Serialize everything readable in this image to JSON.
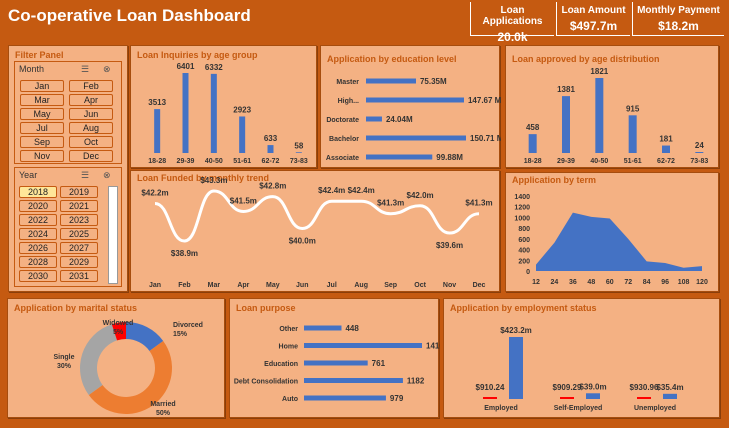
{
  "title": "Co-operative Loan Dashboard",
  "kpis": [
    {
      "label": "Loan Applications",
      "value": "20.0k"
    },
    {
      "label": "Loan Amount",
      "value": "$497.7m"
    },
    {
      "label": "Monthly Payment",
      "value": "$18.2m"
    }
  ],
  "filter": {
    "title": "Filter Panel",
    "month_label": "Month",
    "months": [
      "Jan",
      "Feb",
      "Mar",
      "Apr",
      "May",
      "Jun",
      "Jul",
      "Aug",
      "Sep",
      "Oct",
      "Nov",
      "Dec"
    ],
    "year_label": "Year",
    "years": [
      "2018",
      "2019",
      "2020",
      "2021",
      "2022",
      "2023",
      "2024",
      "2025",
      "2026",
      "2027",
      "2028",
      "2029",
      "2030",
      "2031"
    ],
    "selected_year": "2018"
  },
  "chart_data": [
    {
      "id": "age",
      "type": "bar",
      "title": "Loan Inquiries by age group",
      "categories": [
        "18-28",
        "29-39",
        "40-50",
        "51-61",
        "62-72",
        "73-83"
      ],
      "values": [
        3513,
        6401,
        6332,
        2923,
        633,
        58
      ],
      "color": "#4472c4"
    },
    {
      "id": "edu",
      "type": "bar",
      "orientation": "horizontal",
      "title": "Application by education level",
      "categories": [
        "Master",
        "High...",
        "Doctorate",
        "Bachelor",
        "Associate"
      ],
      "values": [
        75.35,
        147.67,
        24.04,
        150.71,
        99.88
      ],
      "labels": [
        "75.35M",
        "147.67 M",
        "24.04M",
        "150.71 M",
        "99.88M"
      ],
      "color": "#4472c4"
    },
    {
      "id": "approved",
      "type": "bar",
      "title": "Loan approved by age distribution",
      "categories": [
        "18-28",
        "29-39",
        "40-50",
        "51-61",
        "62-72",
        "73-83"
      ],
      "values": [
        458,
        1381,
        1821,
        915,
        181,
        24
      ],
      "color": "#4472c4"
    },
    {
      "id": "trend",
      "type": "line",
      "title": "Loan Funded by monthly trend",
      "categories": [
        "Jan",
        "Feb",
        "Mar",
        "Apr",
        "May",
        "Jun",
        "Jul",
        "Aug",
        "Sep",
        "Oct",
        "Nov",
        "Dec"
      ],
      "values": [
        42.2,
        38.9,
        43.3,
        41.5,
        42.8,
        40.0,
        42.4,
        42.4,
        41.3,
        42.0,
        39.6,
        41.3
      ],
      "labels": [
        "$42.2m",
        "$38.9m",
        "$43.3m",
        "$41.5m",
        "$42.8m",
        "$40.0m",
        "$42.4m",
        "$42.4m",
        "$41.3m",
        "$42.0m",
        "$39.6m",
        "$41.3m"
      ],
      "color": "#ffffff"
    },
    {
      "id": "term",
      "type": "area",
      "title": "Application by term",
      "categories": [
        "12",
        "24",
        "36",
        "48",
        "60",
        "72",
        "84",
        "96",
        "108",
        "120"
      ],
      "values": [
        120,
        530,
        1090,
        1010,
        980,
        600,
        180,
        150,
        60,
        90
      ],
      "ylim": [
        0,
        1400
      ],
      "yticks": [
        0,
        200,
        400,
        600,
        800,
        1000,
        1200,
        1400
      ],
      "color": "#4472c4"
    },
    {
      "id": "marital",
      "type": "pie",
      "title": "Application by marital status",
      "slices": [
        {
          "name": "Divorced",
          "value": 15,
          "label": "15%",
          "color": "#4472c4"
        },
        {
          "name": "Married",
          "value": 50,
          "label": "50%",
          "color": "#ed7d31"
        },
        {
          "name": "Single",
          "value": 30,
          "label": "30%",
          "color": "#a5a5a5"
        },
        {
          "name": "Widowed",
          "value": 5,
          "label": "5%",
          "color": "#ff0000"
        }
      ]
    },
    {
      "id": "purpose",
      "type": "bar",
      "orientation": "horizontal",
      "title": "Loan purpose",
      "categories": [
        "Other",
        "Home",
        "Education",
        "Debt Consolidation",
        "Auto"
      ],
      "values": [
        448,
        1410,
        761,
        1182,
        979
      ],
      "color": "#4472c4"
    },
    {
      "id": "employment",
      "type": "bar",
      "title": "Application by employment status",
      "categories": [
        "Employed",
        "Self-Employed",
        "Unemployed"
      ],
      "series": [
        {
          "values": [
            910.24,
            909.29,
            930.96
          ],
          "labels": [
            "$910.24",
            "$909.29",
            "$930.96"
          ],
          "color": "#ff0000"
        },
        {
          "values": [
            423200,
            39000,
            35400
          ],
          "labels": [
            "$423.2m",
            "$39.0m",
            "$35.4m"
          ],
          "color": "#4472c4"
        }
      ]
    }
  ]
}
